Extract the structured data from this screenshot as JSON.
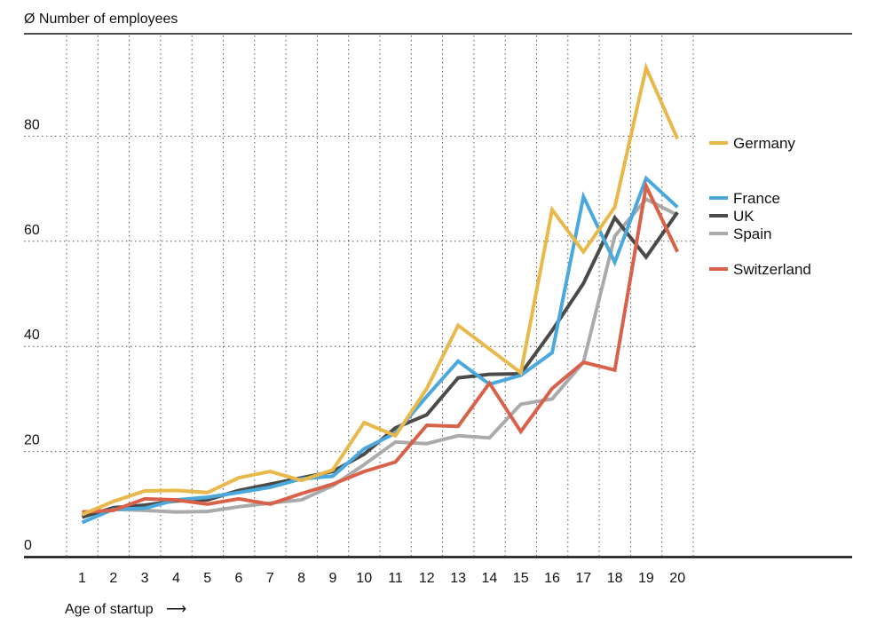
{
  "chart_data": {
    "type": "line",
    "ylabel": "Ø Number of employees",
    "xlabel": "Age of startup",
    "xlabel_arrow": "⟶",
    "categories": [
      "1",
      "2",
      "3",
      "4",
      "5",
      "6",
      "7",
      "8",
      "9",
      "10",
      "11",
      "12",
      "13",
      "14",
      "15",
      "16",
      "17",
      "18",
      "19",
      "20"
    ],
    "y_ticks": [
      "0",
      "20",
      "40",
      "60",
      "80"
    ],
    "ylim": [
      0,
      100
    ],
    "grid": "dotted vertical and horizontal",
    "legend_position": "right",
    "series": [
      {
        "name": "Germany",
        "color": "#e8b84a",
        "values": [
          8,
          10.5,
          12.5,
          12.6,
          12.2,
          15,
          16.2,
          14.5,
          16.5,
          25.5,
          23,
          32,
          44,
          39.5,
          35,
          66,
          58,
          66.5,
          93,
          79.5
        ]
      },
      {
        "name": "France",
        "color": "#4aa8dd",
        "values": [
          6.5,
          9,
          9.2,
          10.8,
          11.3,
          12.2,
          13.2,
          14.8,
          15.3,
          20.5,
          23.5,
          30.5,
          37.2,
          32.8,
          34.5,
          38.8,
          68.5,
          56,
          72,
          66.5
        ]
      },
      {
        "name": "UK",
        "color": "#4a4a48",
        "values": [
          7.5,
          9.3,
          9.8,
          10.6,
          10.8,
          12.6,
          13.8,
          15,
          16.2,
          19.5,
          24.5,
          27,
          34,
          34.7,
          34.8,
          43,
          52,
          64.5,
          57,
          65.5
        ]
      },
      {
        "name": "Spain",
        "color": "#aaaaaa",
        "values": [
          8.2,
          9,
          8.8,
          8.5,
          8.6,
          9.5,
          10.2,
          10.8,
          13.5,
          17.5,
          21.8,
          21.5,
          23,
          22.6,
          29,
          30,
          37,
          61,
          68,
          65
        ]
      },
      {
        "name": "Switzerland",
        "color": "#d9614a",
        "values": [
          8.5,
          8.8,
          11,
          10.8,
          10,
          11,
          10,
          12,
          13.8,
          16.2,
          18,
          25,
          24.8,
          33,
          23.8,
          32,
          37,
          35.5,
          70.5,
          58
        ]
      }
    ]
  }
}
